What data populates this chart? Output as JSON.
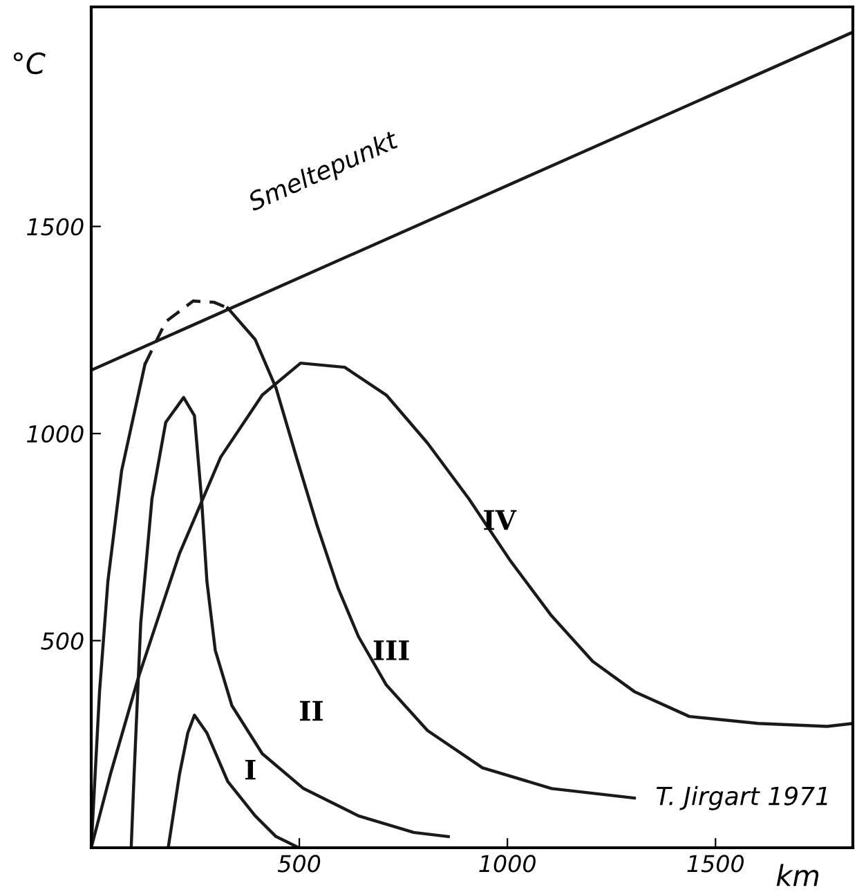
{
  "chart_data": {
    "type": "line",
    "xlabel": "km",
    "ylabel": "°C",
    "xlim": [
      0,
      1830
    ],
    "ylim": [
      0,
      2030
    ],
    "xticks": [
      500,
      1000,
      1500
    ],
    "yticks": [
      500,
      1000,
      1500
    ],
    "grid": false,
    "marker": "none",
    "line_style": "solid",
    "series": [
      {
        "color": "#1a1a1a",
        "x": [
          0,
          1830
        ],
        "values": [
          1153,
          1969
        ]
      },
      {
        "color": "#1a1a1a",
        "x": [
          0,
          46,
          113,
          212,
          311,
          411,
          503,
          609,
          709,
          808,
          907,
          1007,
          1106,
          1205,
          1305,
          1437,
          1603,
          1768,
          1830
        ],
        "values": [
          0,
          177,
          410,
          710,
          943,
          1093,
          1170,
          1160,
          1093,
          977,
          843,
          693,
          560,
          450,
          377,
          317,
          300,
          293,
          300
        ]
      },
      {
        "color": "#1a1a1a",
        "x": [
          0,
          20,
          40,
          73,
          129,
          179,
          245,
          295,
          328,
          394,
          444,
          493,
          543,
          593,
          642,
          709,
          808,
          940,
          1106,
          1305
        ],
        "values": [
          0,
          377,
          643,
          910,
          1167,
          null,
          null,
          null,
          1303,
          1227,
          1110,
          943,
          777,
          627,
          510,
          393,
          283,
          193,
          143,
          120
        ]
      },
      {
        "color": "#1a1a1a",
        "line_style": "dashed",
        "x": [
          129,
          179,
          245,
          295,
          328
        ],
        "values": [
          1167,
          1270,
          1320,
          1317,
          1303
        ]
      },
      {
        "color": "#1a1a1a",
        "x": [
          96,
          103,
          119,
          146,
          179,
          222,
          248,
          265,
          278,
          298,
          338,
          411,
          510,
          642,
          775,
          858
        ],
        "values": [
          0,
          177,
          543,
          843,
          1027,
          1087,
          1043,
          843,
          643,
          477,
          343,
          227,
          143,
          77,
          37,
          27
        ]
      },
      {
        "color": "#1a1a1a",
        "x": [
          185,
          212,
          232,
          248,
          278,
          328,
          394,
          444,
          493
        ],
        "values": [
          0,
          177,
          277,
          320,
          277,
          160,
          77,
          27,
          3
        ]
      }
    ],
    "annotations": [
      "Smeltepunkt",
      "I",
      "II",
      "III",
      "IV",
      "T. Jirgart 1971"
    ]
  }
}
